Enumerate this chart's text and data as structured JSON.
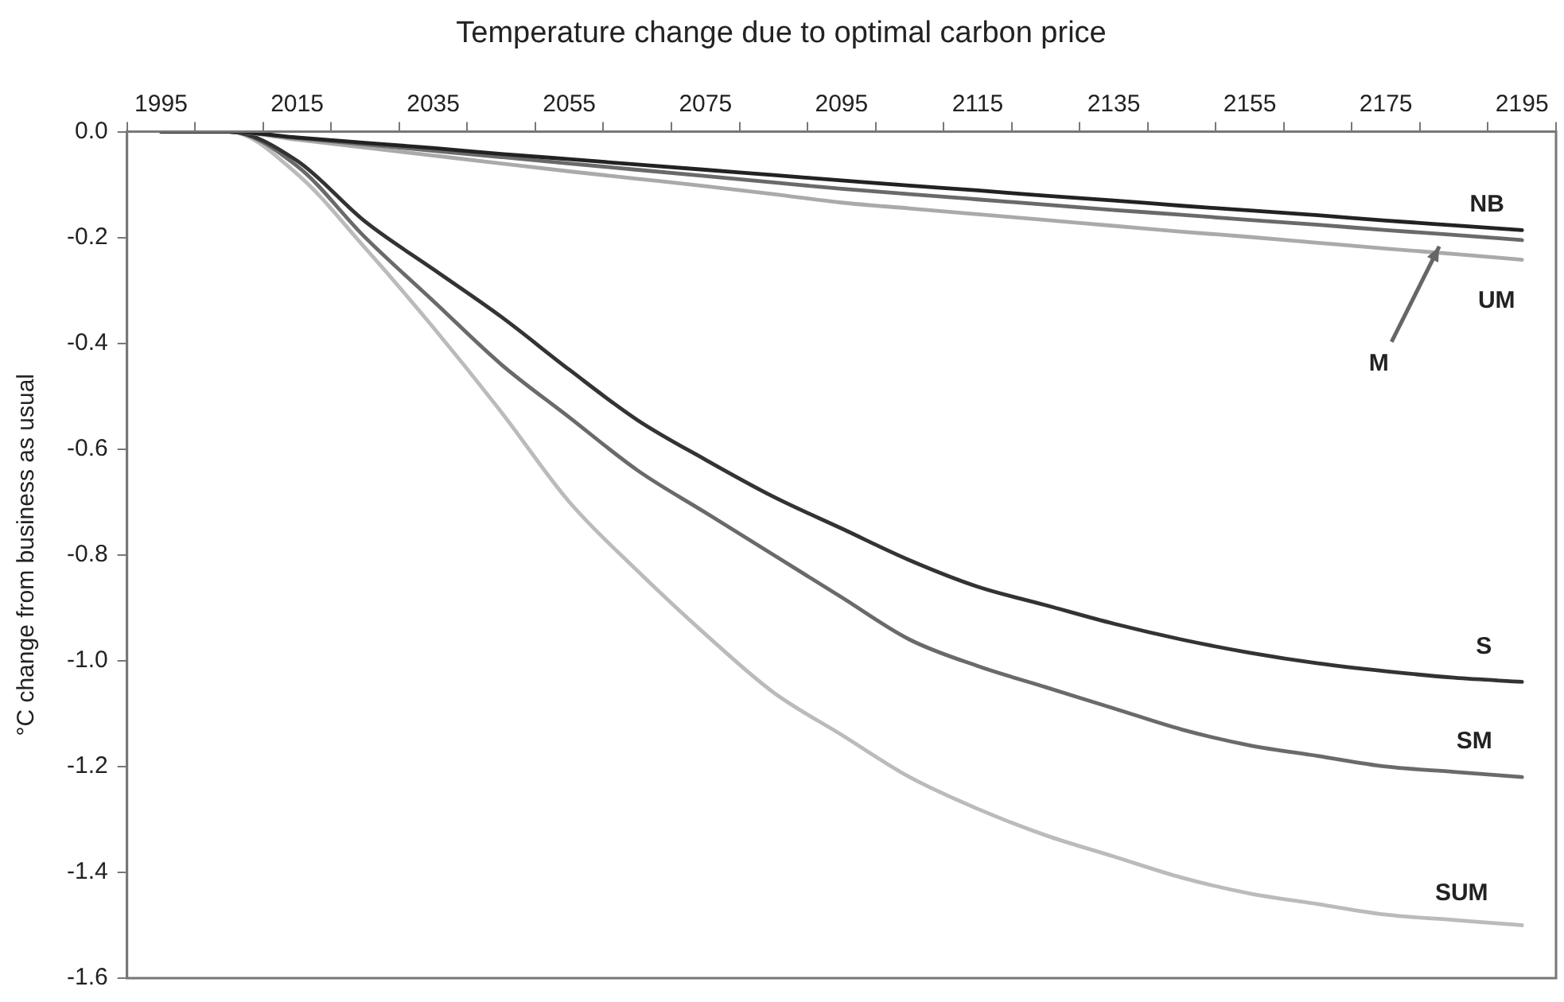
{
  "chart_data": {
    "type": "line",
    "title": "Temperature change due to optimal carbon price",
    "ylabel": "°C change from business as usual",
    "categories": [
      "1995",
      null,
      "2015",
      null,
      "2035",
      null,
      "2055",
      null,
      "2075",
      null,
      "2095",
      null,
      "2115",
      null,
      "2135",
      null,
      "2155",
      null,
      "2175",
      null,
      "2195"
    ],
    "series": [
      {
        "name": "NB",
        "color": "#222222",
        "values": [
          0,
          0,
          -0.011,
          -0.021,
          -0.031,
          -0.042,
          -0.052,
          -0.062,
          -0.072,
          -0.082,
          -0.092,
          -0.102,
          -0.111,
          -0.121,
          -0.13,
          -0.14,
          -0.149,
          -0.158,
          -0.168,
          -0.177,
          -0.186
        ]
      },
      {
        "name": "M",
        "color": "#6a6a6a",
        "values": [
          0,
          0,
          -0.012,
          -0.024,
          -0.036,
          -0.048,
          -0.06,
          -0.072,
          -0.084,
          -0.096,
          -0.108,
          -0.118,
          -0.128,
          -0.138,
          -0.148,
          -0.157,
          -0.167,
          -0.176,
          -0.186,
          -0.195,
          -0.205
        ]
      },
      {
        "name": "UM",
        "color": "#aaaaaa",
        "values": [
          0,
          0,
          -0.015,
          -0.03,
          -0.045,
          -0.06,
          -0.075,
          -0.089,
          -0.103,
          -0.118,
          -0.134,
          -0.145,
          -0.156,
          -0.167,
          -0.178,
          -0.189,
          -0.199,
          -0.21,
          -0.221,
          -0.231,
          -0.242
        ]
      },
      {
        "name": "S",
        "color": "#333333",
        "values": [
          0,
          0,
          -0.055,
          -0.17,
          -0.26,
          -0.35,
          -0.45,
          -0.545,
          -0.62,
          -0.69,
          -0.75,
          -0.81,
          -0.86,
          -0.895,
          -0.93,
          -0.96,
          -0.985,
          -1.005,
          -1.02,
          -1.032,
          -1.04
        ]
      },
      {
        "name": "SM",
        "color": "#6a6a6a",
        "values": [
          0,
          0,
          -0.065,
          -0.2,
          -0.32,
          -0.44,
          -0.54,
          -0.64,
          -0.72,
          -0.8,
          -0.88,
          -0.96,
          -1.01,
          -1.05,
          -1.09,
          -1.13,
          -1.16,
          -1.18,
          -1.2,
          -1.21,
          -1.22
        ]
      },
      {
        "name": "SUM",
        "color": "#bbbbbb",
        "values": [
          0,
          0,
          -0.08,
          -0.22,
          -0.37,
          -0.53,
          -0.7,
          -0.83,
          -0.95,
          -1.06,
          -1.14,
          -1.22,
          -1.28,
          -1.33,
          -1.37,
          -1.41,
          -1.44,
          -1.46,
          -1.48,
          -1.49,
          -1.5
        ]
      }
    ],
    "ylim": [
      -1.6,
      0
    ],
    "yticks": [
      {
        "value": 0,
        "label": "0.0"
      },
      -0.2,
      -0.4,
      -0.6,
      -0.8,
      {
        "value": -1,
        "label": "-1.0"
      },
      -1.2,
      -1.4,
      -1.6
    ],
    "grid": false,
    "legend": false,
    "marker": "none",
    "line_style": "solid"
  }
}
